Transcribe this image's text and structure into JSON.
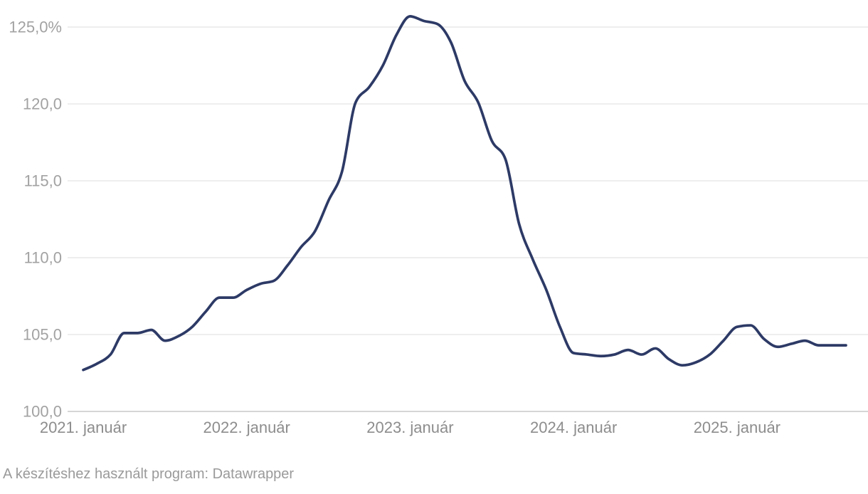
{
  "chart_data": {
    "type": "line",
    "title": "",
    "xlabel": "",
    "ylabel": "",
    "legend": null,
    "grid": "horizontal",
    "ylim": [
      100,
      126.3
    ],
    "x": [
      "2021-01",
      "2021-02",
      "2021-03",
      "2021-04",
      "2021-05",
      "2021-06",
      "2021-07",
      "2021-08",
      "2021-09",
      "2021-10",
      "2021-11",
      "2021-12",
      "2022-01",
      "2022-02",
      "2022-03",
      "2022-04",
      "2022-05",
      "2022-06",
      "2022-07",
      "2022-08",
      "2022-09",
      "2022-10",
      "2022-11",
      "2022-12",
      "2023-01",
      "2023-02",
      "2023-03",
      "2023-04",
      "2023-05",
      "2023-06",
      "2023-07",
      "2023-08",
      "2023-09",
      "2023-10",
      "2023-11",
      "2023-12",
      "2024-01",
      "2024-02",
      "2024-03",
      "2024-04",
      "2024-05",
      "2024-06",
      "2024-07",
      "2024-08",
      "2024-09",
      "2024-10",
      "2024-11",
      "2024-12",
      "2025-01",
      "2025-02",
      "2025-03",
      "2025-04",
      "2025-05",
      "2025-06",
      "2025-07",
      "2025-08",
      "2025-09"
    ],
    "values": [
      102.7,
      103.1,
      103.7,
      105.1,
      105.1,
      105.3,
      104.6,
      104.9,
      105.5,
      106.5,
      107.4,
      107.4,
      107.9,
      108.3,
      108.5,
      109.5,
      110.7,
      111.7,
      113.7,
      115.6,
      120.1,
      121.1,
      122.5,
      124.5,
      125.7,
      125.4,
      125.2,
      124.0,
      121.5,
      120.1,
      117.6,
      116.4,
      112.2,
      109.9,
      107.9,
      105.5,
      103.8,
      103.7,
      103.6,
      103.7,
      104.0,
      103.7,
      104.1,
      103.4,
      103.0,
      103.2,
      103.7,
      104.6,
      105.5,
      105.6,
      104.7,
      104.2,
      104.4,
      104.6,
      104.3,
      104.3,
      104.3
    ],
    "y_ticks": [
      {
        "value": 100,
        "label": "100,0",
        "baseline": true
      },
      {
        "value": 105,
        "label": "105,0",
        "baseline": false
      },
      {
        "value": 110,
        "label": "110,0",
        "baseline": false
      },
      {
        "value": 115,
        "label": "115,0",
        "baseline": false
      },
      {
        "value": 120,
        "label": "120,0",
        "baseline": false
      },
      {
        "value": 125,
        "label": "125,0%",
        "baseline": false
      }
    ],
    "x_ticks": [
      {
        "index": 0,
        "label": "2021. január"
      },
      {
        "index": 12,
        "label": "2022. január"
      },
      {
        "index": 24,
        "label": "2023. január"
      },
      {
        "index": 36,
        "label": "2024. január"
      },
      {
        "index": 48,
        "label": "2025. január"
      }
    ],
    "colors": {
      "line": "#2d3a66",
      "grid": "#e8e8e8",
      "baseline_grid": "#c9c9c9",
      "y_axis_text": "#a2a2a2",
      "x_axis_text": "#8d8d8d",
      "footer_text": "#9a9a9a"
    }
  },
  "footer": {
    "text": "A készítéshez használt program: Datawrapper"
  }
}
